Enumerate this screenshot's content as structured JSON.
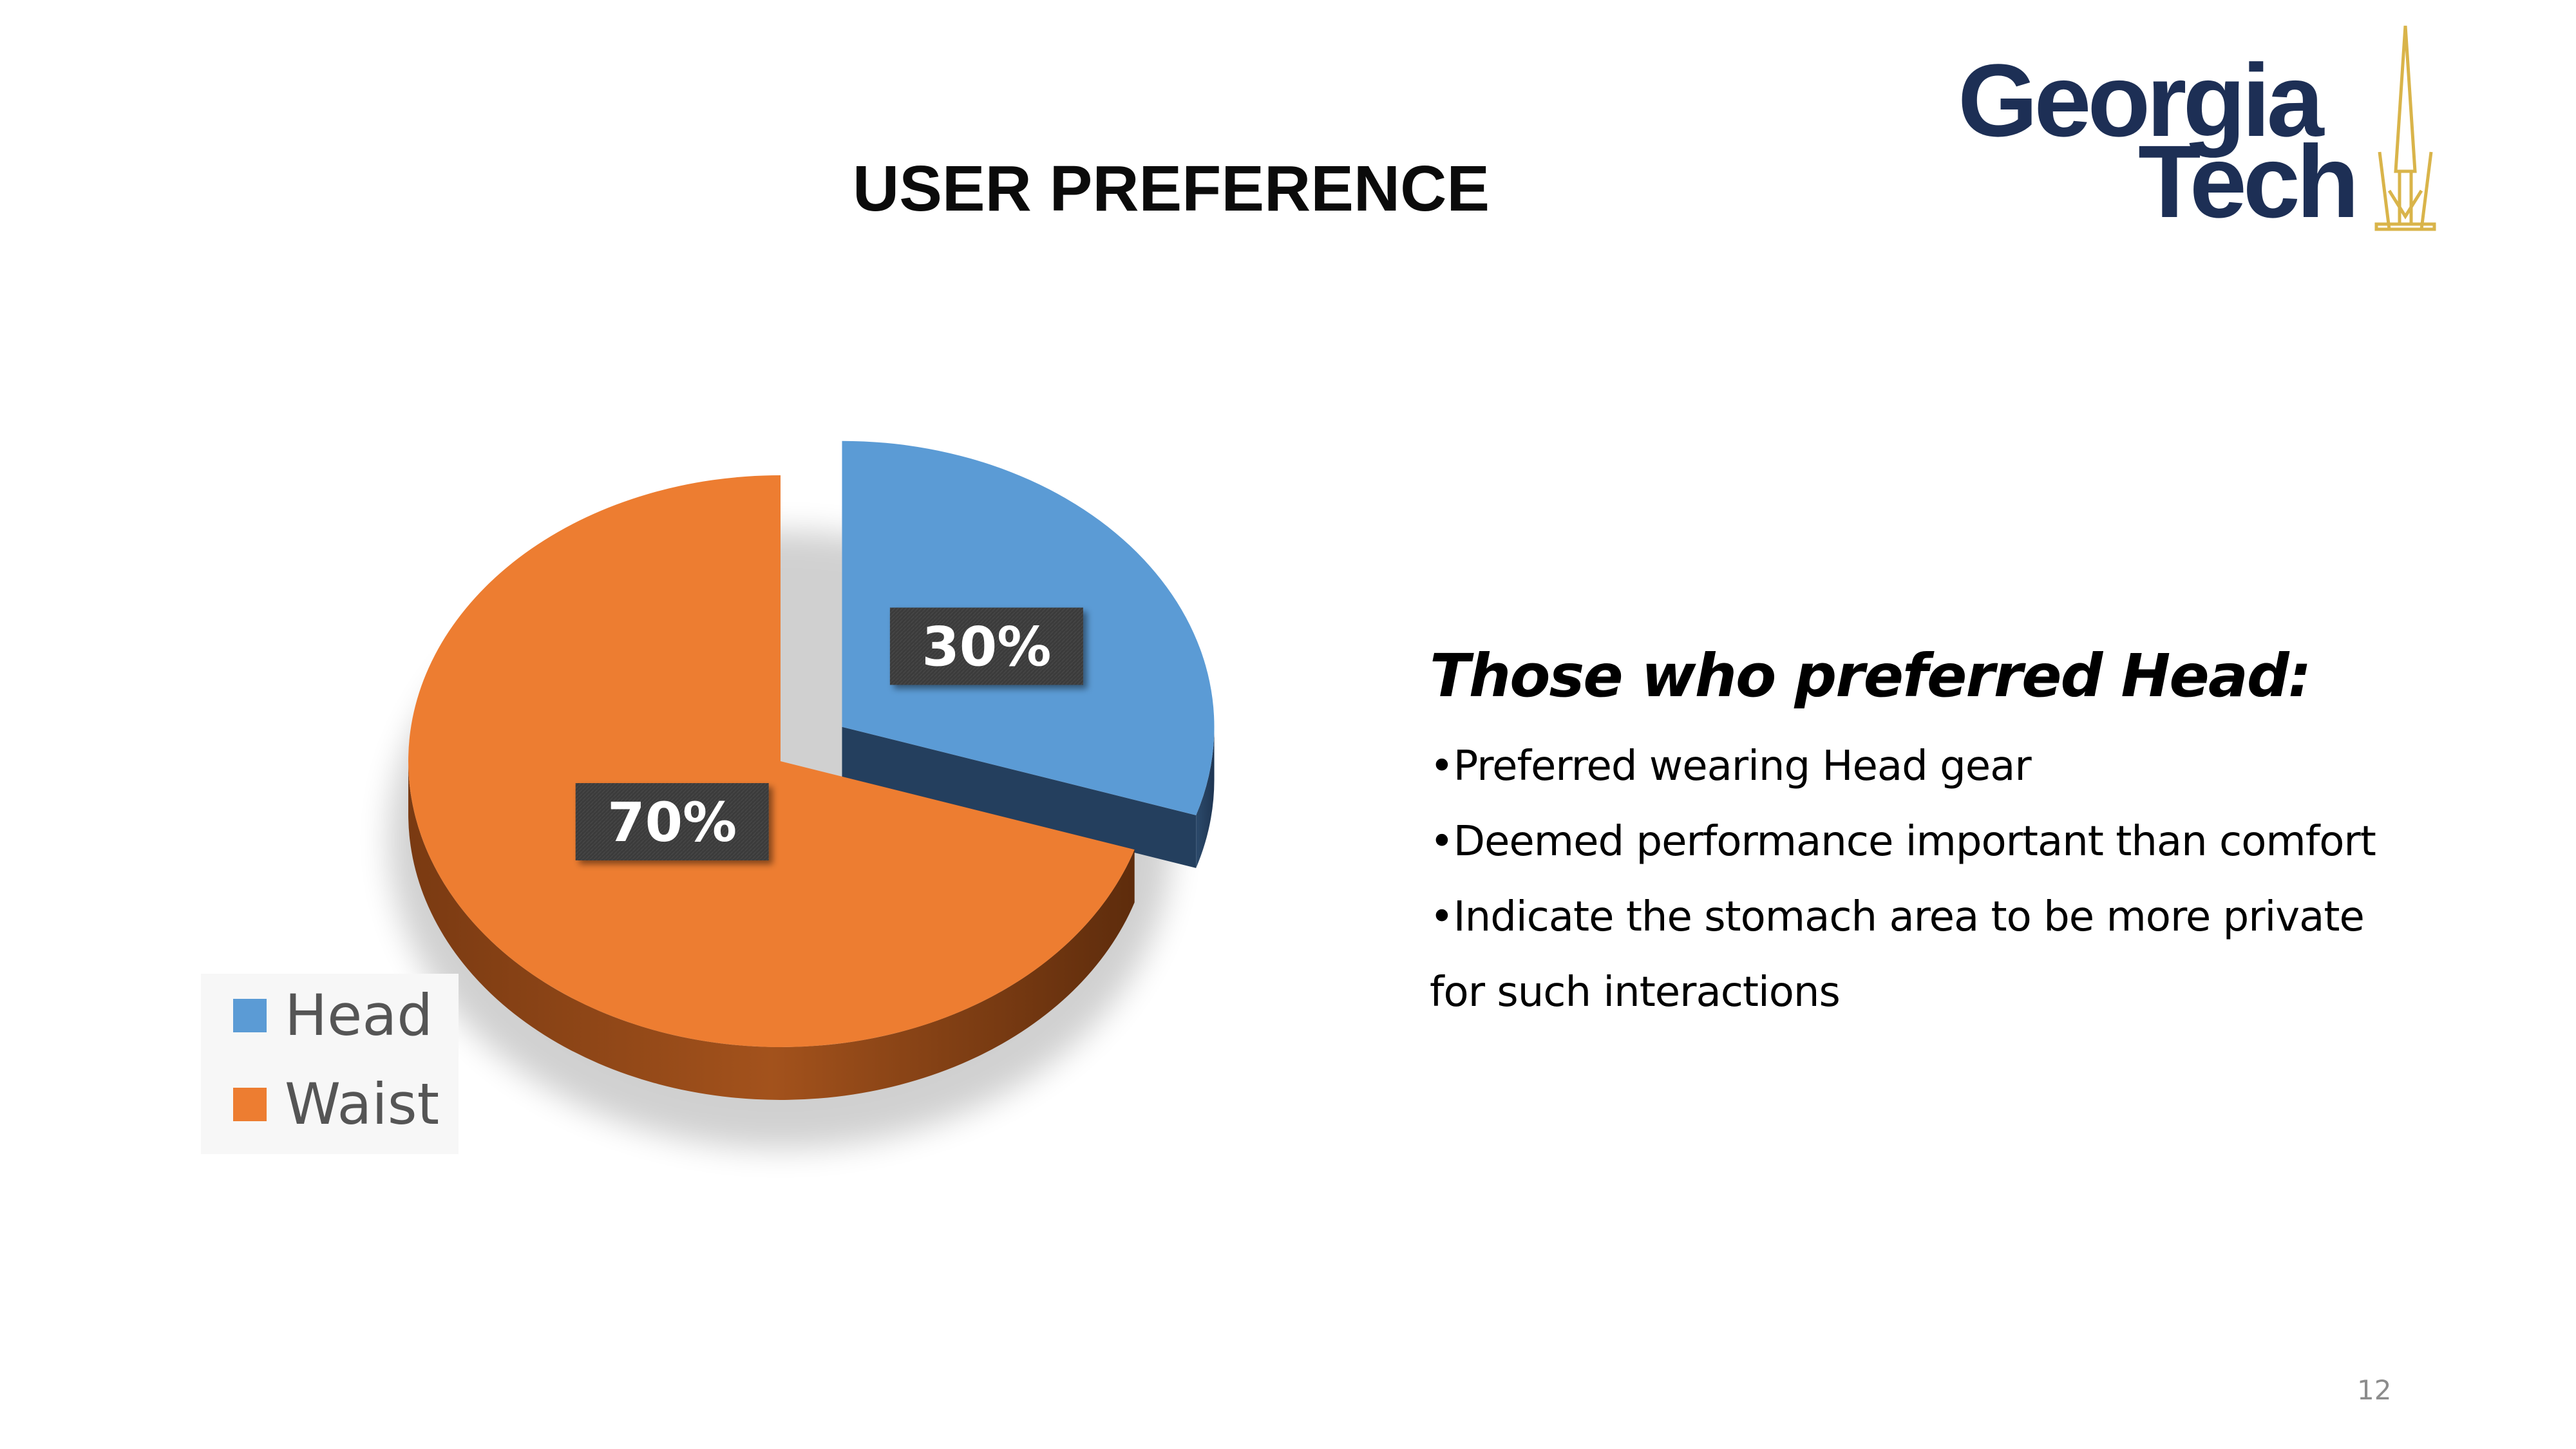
{
  "slide": {
    "title": "USER PREFERENCE",
    "page_number": "12"
  },
  "logo": {
    "line1": "Georgia",
    "line2": "Tech",
    "text_color": "#1d2f55",
    "tower_color": "#d9b44a"
  },
  "panel": {
    "heading": "Those who preferred Head:",
    "bullets": [
      "•Preferred wearing Head gear",
      "•Deemed performance important than comfort",
      "•Indicate the stomach area to be more private",
      "for such interactions"
    ]
  },
  "chart_data": {
    "type": "pie",
    "style": "3d-exploded",
    "categories": [
      "Head",
      "Waist"
    ],
    "values": [
      30,
      70
    ],
    "value_labels": [
      "30%",
      "70%"
    ],
    "colors": [
      "#5b9bd5",
      "#ed7d31"
    ],
    "exploded": "Head",
    "legend_position": "bottom-left",
    "legend": [
      "Head",
      "Waist"
    ]
  }
}
